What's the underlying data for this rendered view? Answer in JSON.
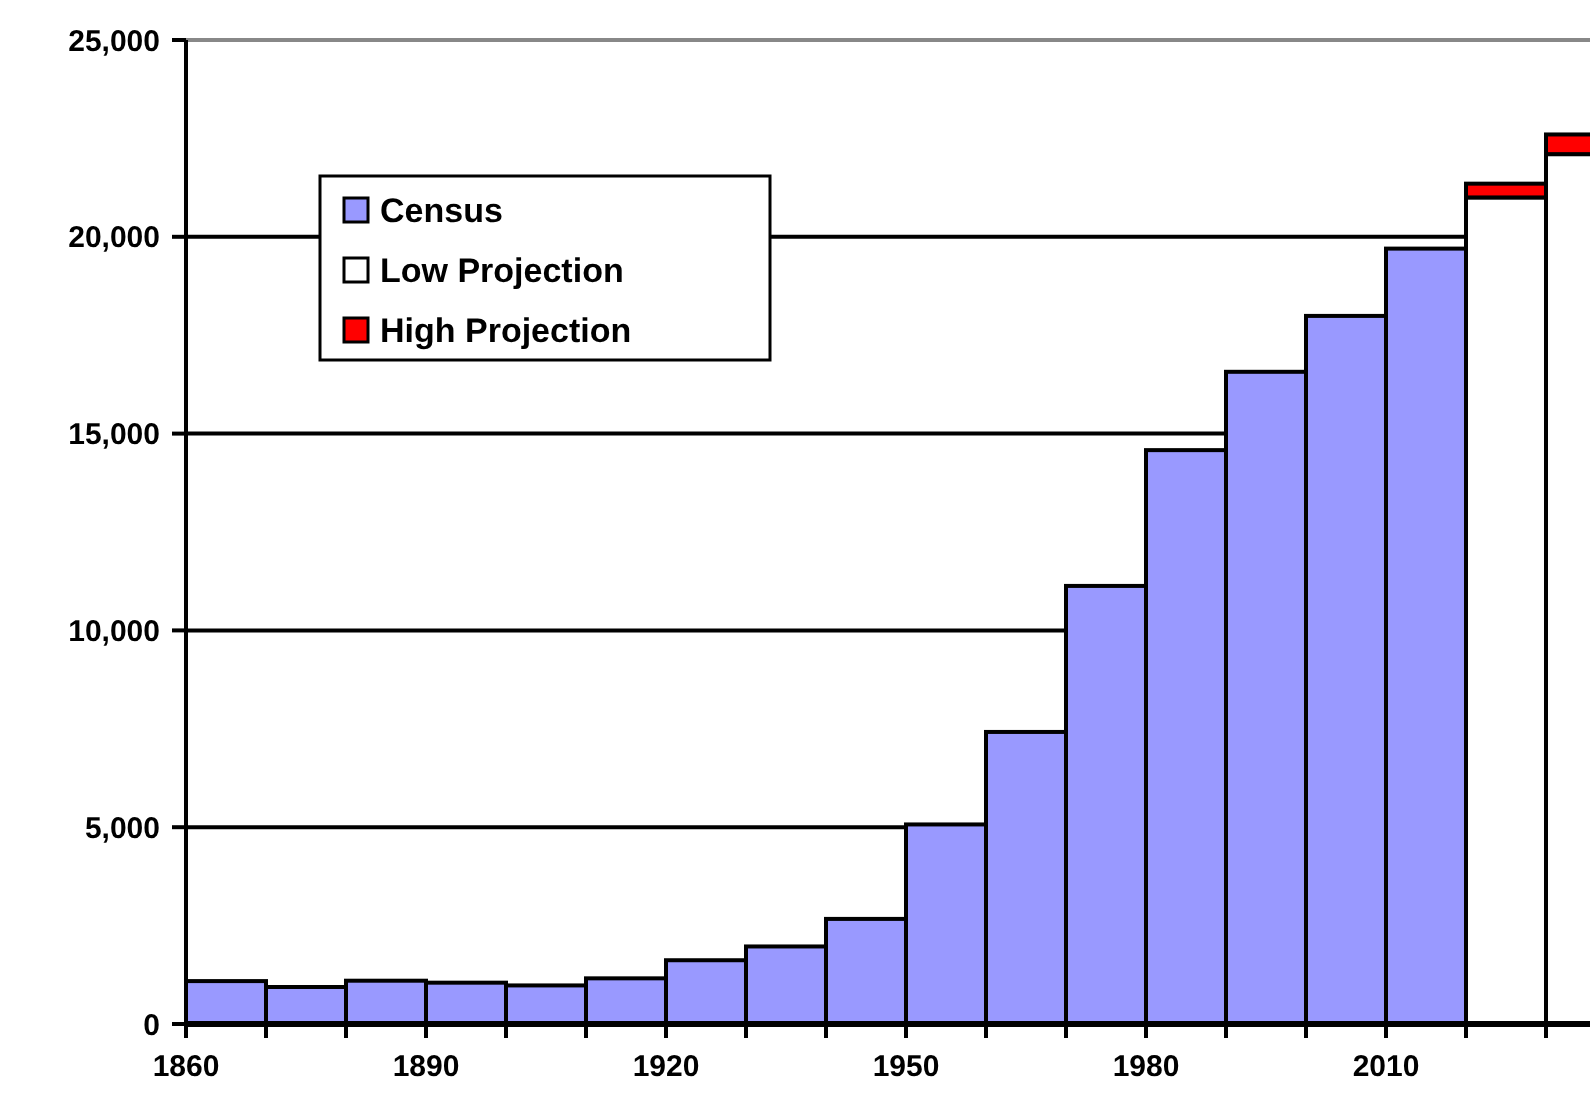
{
  "chart_data": {
    "type": "bar",
    "stacked": true,
    "x": [
      1865,
      1875,
      1885,
      1895,
      1905,
      1915,
      1925,
      1935,
      1945,
      1955,
      1965,
      1975,
      1985,
      1995,
      2005,
      2015,
      2025,
      2035
    ],
    "series": [
      {
        "name": "Census",
        "color": "#9999ff",
        "values": [
          1090,
          940,
          1100,
          1050,
          980,
          1160,
          1620,
          1970,
          2670,
          5070,
          7420,
          11130,
          14580,
          16570,
          17990,
          19700,
          null,
          null
        ]
      },
      {
        "name": "Low Projection",
        "color": "#ffffff",
        "values": [
          null,
          null,
          null,
          null,
          null,
          null,
          null,
          null,
          null,
          null,
          null,
          null,
          null,
          null,
          null,
          null,
          21000,
          22100
        ]
      },
      {
        "name": "High Projection",
        "color": "#ff0000",
        "values": [
          null,
          null,
          null,
          null,
          null,
          null,
          null,
          null,
          null,
          null,
          null,
          null,
          null,
          null,
          null,
          null,
          350,
          500
        ]
      }
    ],
    "xlim": [
      1860,
      2035.5
    ],
    "xticks": [
      1860,
      {
        "value": 1870,
        "label": null
      },
      {
        "value": 1880,
        "label": null
      },
      1890,
      {
        "value": 1900,
        "label": null
      },
      {
        "value": 1910,
        "label": null
      },
      1920,
      {
        "value": 1930,
        "label": null
      },
      {
        "value": 1940,
        "label": null
      },
      1950,
      {
        "value": 1960,
        "label": null
      },
      {
        "value": 1970,
        "label": null
      },
      1980,
      {
        "value": 1990,
        "label": null
      },
      {
        "value": 2000,
        "label": null
      },
      2010,
      {
        "value": 2020,
        "label": null
      },
      {
        "value": 2030,
        "label": null
      }
    ],
    "ylim": [
      0,
      25000
    ],
    "yticks": [
      0,
      {
        "value": 5000,
        "label": "5,000"
      },
      {
        "value": 10000,
        "label": "10,000"
      },
      {
        "value": 15000,
        "label": "15,000"
      },
      {
        "value": 20000,
        "label": "20,000"
      },
      {
        "value": 25000,
        "label": "25,000"
      }
    ],
    "grid": "y",
    "legend": "top left"
  }
}
